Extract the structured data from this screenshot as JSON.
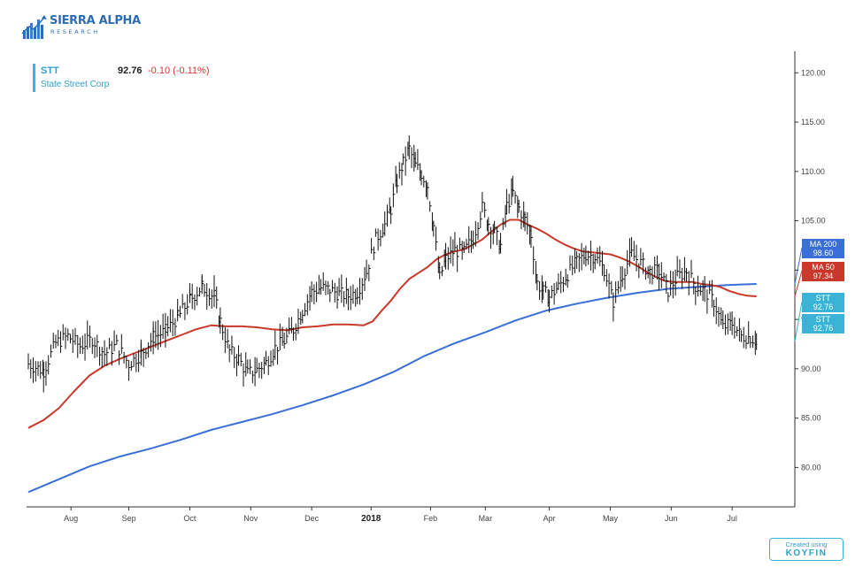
{
  "brand": {
    "logo_title": "SIERRA ALPHA",
    "logo_subtitle": "RESEARCH",
    "watermark_line1": "Created using",
    "watermark_line2": "KOYFIN"
  },
  "header": {
    "ticker": "STT",
    "company": "State Street Corp",
    "price": "92.76",
    "change": "-0.10 (-0.11%)"
  },
  "badges": [
    {
      "label": "MA 200",
      "value": "98.60",
      "color": "#3a6fd8"
    },
    {
      "label": "MA 50",
      "value": "97.34",
      "color": "#c8382b"
    },
    {
      "label": "STT",
      "value": "92.76",
      "color": "#3bb3d6"
    },
    {
      "label": "STT",
      "value": "92.76",
      "color": "#3bb3d6"
    }
  ],
  "chart_data": {
    "type": "line",
    "ylim": [
      76,
      122
    ],
    "y_ticks": [
      "80.00",
      "85.00",
      "90.00",
      "95.00",
      "100.00",
      "105.00",
      "110.00",
      "115.00",
      "120.00"
    ],
    "x_labels": [
      "Aug",
      "Sep",
      "Oct",
      "Nov",
      "Dec",
      "2018",
      "Feb",
      "Mar",
      "Apr",
      "May",
      "Jun",
      "Jul"
    ],
    "x_positions": [
      14,
      33,
      53,
      73,
      93,
      112.5,
      132,
      150,
      171,
      191,
      211,
      231
    ],
    "x_range": [
      0,
      242
    ],
    "colors": {
      "price": "#111111",
      "ma50": "#c8382b",
      "ma200": "#3a6fd8"
    },
    "series": [
      {
        "name": "STT",
        "x": [
          0,
          5,
          9,
          13,
          17,
          21,
          25,
          29,
          33,
          37,
          41,
          45,
          49,
          53,
          57,
          61,
          63,
          66,
          69,
          72,
          75,
          78,
          81,
          84,
          87,
          90,
          93,
          96,
          99,
          102,
          105,
          108,
          111,
          114,
          117,
          119,
          121,
          123,
          125,
          127,
          129,
          131,
          133,
          135,
          137,
          140,
          143,
          146,
          149,
          151,
          153,
          155,
          157,
          159,
          161,
          163,
          165,
          167,
          169,
          171,
          174,
          177,
          180,
          183,
          186,
          189,
          192,
          195,
          198,
          201,
          204,
          207,
          210,
          213,
          216,
          219,
          222,
          225,
          228,
          231,
          234,
          237,
          239
        ],
        "values": [
          90.5,
          89.8,
          92.6,
          93.3,
          92.3,
          93.0,
          91.5,
          92.4,
          90.5,
          91.5,
          93.2,
          93.8,
          95.2,
          97.0,
          98.3,
          97.4,
          94.8,
          91.8,
          91.0,
          89.5,
          89.9,
          90.6,
          92.1,
          92.8,
          94.0,
          95.9,
          97.8,
          98.2,
          98.0,
          97.6,
          97.4,
          97.8,
          99.8,
          103.1,
          104.6,
          106.2,
          109.0,
          110.8,
          112.3,
          110.6,
          109.8,
          108.6,
          104.5,
          99.2,
          101.1,
          102.0,
          101.8,
          103.3,
          106.3,
          104.8,
          103.8,
          102.5,
          106.5,
          107.8,
          106.3,
          105.1,
          103.6,
          98.7,
          97.8,
          97.3,
          98.3,
          99.6,
          100.8,
          101.6,
          101.4,
          100.1,
          96.8,
          99.6,
          101.6,
          100.7,
          99.8,
          99.9,
          97.9,
          99.3,
          99.9,
          98.4,
          97.9,
          96.8,
          94.2,
          94.6,
          93.3,
          93.2,
          92.8
        ]
      },
      {
        "name": "MA 50",
        "x": [
          0,
          5,
          10,
          15,
          20,
          25,
          30,
          35,
          40,
          45,
          50,
          55,
          60,
          65,
          70,
          75,
          80,
          85,
          90,
          95,
          100,
          105,
          110,
          113,
          116,
          119,
          122,
          125,
          128,
          131,
          134,
          137,
          140,
          143,
          146,
          149,
          152,
          155,
          158,
          161,
          164,
          167,
          170,
          173,
          176,
          179,
          182,
          185,
          188,
          191,
          194,
          197,
          200,
          203,
          206,
          209,
          212,
          215,
          218,
          221,
          224,
          227,
          230,
          233,
          236,
          239
        ],
        "values": [
          84.0,
          84.8,
          86.0,
          87.7,
          89.3,
          90.3,
          91.0,
          91.6,
          92.2,
          92.8,
          93.4,
          94.0,
          94.4,
          94.3,
          94.3,
          94.2,
          94.0,
          93.9,
          94.2,
          94.3,
          94.5,
          94.5,
          94.4,
          94.8,
          95.9,
          96.9,
          98.1,
          99.1,
          99.7,
          100.3,
          101.1,
          101.6,
          101.9,
          102.1,
          102.6,
          103.1,
          103.9,
          104.6,
          105.1,
          105.1,
          104.6,
          104.2,
          103.7,
          103.1,
          102.6,
          102.2,
          101.9,
          101.8,
          101.7,
          101.6,
          101.3,
          100.9,
          100.4,
          99.8,
          99.3,
          98.9,
          98.8,
          98.8,
          98.8,
          98.6,
          98.5,
          98.3,
          97.9,
          97.6,
          97.4,
          97.34
        ]
      },
      {
        "name": "MA 200",
        "x": [
          0,
          10,
          20,
          30,
          40,
          50,
          60,
          70,
          80,
          90,
          100,
          110,
          120,
          130,
          140,
          150,
          160,
          170,
          180,
          190,
          200,
          210,
          220,
          230,
          239
        ],
        "values": [
          77.5,
          78.8,
          80.1,
          81.1,
          81.9,
          82.8,
          83.8,
          84.6,
          85.4,
          86.3,
          87.3,
          88.4,
          89.7,
          91.3,
          92.6,
          93.7,
          94.9,
          95.9,
          96.6,
          97.2,
          97.7,
          98.1,
          98.3,
          98.5,
          98.6
        ]
      }
    ]
  }
}
